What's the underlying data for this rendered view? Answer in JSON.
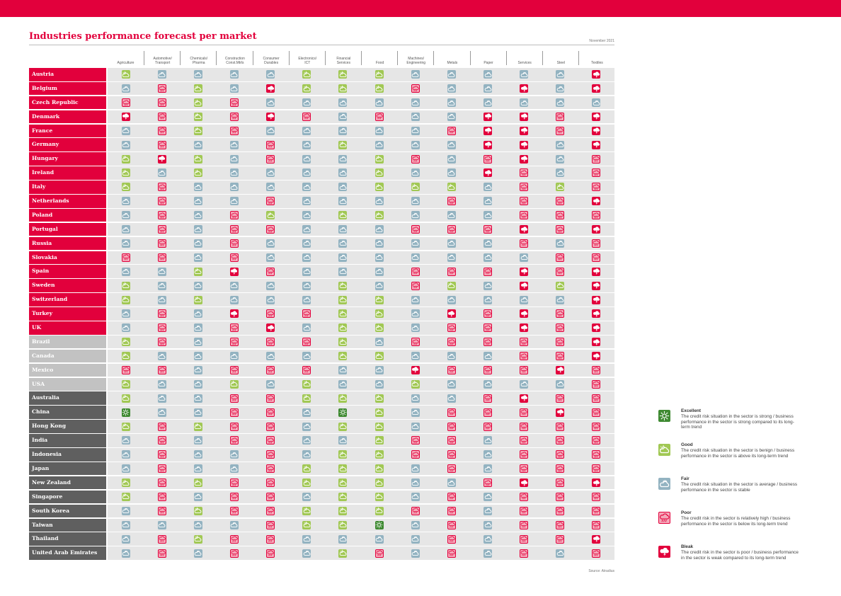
{
  "page": {
    "title": "Industries performance forecast per market",
    "date": "November 2021",
    "source": "Source: Atradius"
  },
  "colors": {
    "brand_red": "#e2003c",
    "excellent": "#3f8a32",
    "good": "#a1c854",
    "fair": "#93b3c1",
    "poor": "#f4a8b9",
    "bleak": "#e2003c",
    "europe_row": "#e2003c",
    "americas_row": "#c2c2c2",
    "asia_pacific_row": "#5f5f5f"
  },
  "sectors": [
    "Agriculture",
    "Automotive/\nTransport",
    "Chemicals/\nPharma",
    "Construction\nConst.Mtrls",
    "Consumer\nDurables",
    "Electronics/\nICT",
    "Financial\nServices",
    "Food",
    "Machines/\nEngineering",
    "Metals",
    "Paper",
    "Services",
    "Steel",
    "Textiles"
  ],
  "rating_key": {
    "E": "excellent",
    "G": "good",
    "F": "fair",
    "P": "poor",
    "B": "bleak"
  },
  "icons": {
    "excellent": "sun-icon",
    "good": "sun-behind-cloud-icon",
    "fair": "cloud-icon",
    "poor": "rain-cloud-icon",
    "bleak": "storm-cloud-icon"
  },
  "markets": [
    {
      "name": "Austria",
      "region": "europe",
      "ratings": "GFFFFGGGFFFFFB"
    },
    {
      "name": "Belgium",
      "region": "europe",
      "ratings": "FPGFBGGGPFFBFB"
    },
    {
      "name": "Czech Republic",
      "region": "europe",
      "ratings": "PPGPFFFFFFFFFF"
    },
    {
      "name": "Denmark",
      "region": "europe",
      "ratings": "BPGPBPFPFFBBPB"
    },
    {
      "name": "France",
      "region": "europe",
      "ratings": "FPGPFFFFFPBBPB"
    },
    {
      "name": "Germany",
      "region": "europe",
      "ratings": "FPFFPFGFFFBBFB"
    },
    {
      "name": "Hungary",
      "region": "europe",
      "ratings": "GBGFPFFGPFPBFP"
    },
    {
      "name": "Ireland",
      "region": "europe",
      "ratings": "GFGFFFFGFFBPFP"
    },
    {
      "name": "Italy",
      "region": "europe",
      "ratings": "GPFFFFFGGGFPGP"
    },
    {
      "name": "Netherlands",
      "region": "europe",
      "ratings": "FPFFPFFFFPFPPB"
    },
    {
      "name": "Poland",
      "region": "europe",
      "ratings": "FPFPGFGGFFFPPP"
    },
    {
      "name": "Portugal",
      "region": "europe",
      "ratings": "FPFPPFFFPPPBPB"
    },
    {
      "name": "Russia",
      "region": "europe",
      "ratings": "FPFPFFFFFFFPFP"
    },
    {
      "name": "Slovakia",
      "region": "europe",
      "ratings": "PPFPFFFFFFFFPP"
    },
    {
      "name": "Spain",
      "region": "europe",
      "ratings": "FFGBPFFFPPPBPB"
    },
    {
      "name": "Sweden",
      "region": "europe",
      "ratings": "GFFFFFGFPGFBGB"
    },
    {
      "name": "Switzerland",
      "region": "europe",
      "ratings": "GFGFFFGGFFFFFB"
    },
    {
      "name": "Turkey",
      "region": "europe",
      "ratings": "FPFBPPGGFBPBPB"
    },
    {
      "name": "UK",
      "region": "europe",
      "ratings": "FPFPBFGGFPPBPB"
    },
    {
      "name": "Brazil",
      "region": "americas",
      "ratings": "GPFPPPGFPPPPPB"
    },
    {
      "name": "Canada",
      "region": "americas",
      "ratings": "GFFFFFGGFFFPPB"
    },
    {
      "name": "Mexico",
      "region": "americas",
      "ratings": "PPFPPPFFBPPPBP"
    },
    {
      "name": "USA",
      "region": "americas",
      "ratings": "GFFGFGFFGFFFFP"
    },
    {
      "name": "Australia",
      "region": "asia_pacific",
      "ratings": "GFFPPGGGFFPBPP"
    },
    {
      "name": "China",
      "region": "asia_pacific",
      "ratings": "EFFPPFEGFPPPBP"
    },
    {
      "name": "Hong Kong",
      "region": "asia_pacific",
      "ratings": "GPGPPFGGFPPPPP"
    },
    {
      "name": "India",
      "region": "asia_pacific",
      "ratings": "FPFPPFFGPPFPPP"
    },
    {
      "name": "Indonesia",
      "region": "asia_pacific",
      "ratings": "FPFFPFGGPPFPPP"
    },
    {
      "name": "Japan",
      "region": "asia_pacific",
      "ratings": "FPFFPGGGFPFPPP"
    },
    {
      "name": "New Zealand",
      "region": "asia_pacific",
      "ratings": "GPGPPGGGFFPBPB"
    },
    {
      "name": "Singapore",
      "region": "asia_pacific",
      "ratings": "GPFPPFGGFPFPPP"
    },
    {
      "name": "South Korea",
      "region": "asia_pacific",
      "ratings": "FPGPPGGGPPFPPP"
    },
    {
      "name": "Taiwan",
      "region": "asia_pacific",
      "ratings": "FFFFPGGEFPFPPP"
    },
    {
      "name": "Thailand",
      "region": "asia_pacific",
      "ratings": "FPGPPFFFFPFPPB"
    },
    {
      "name": "United Arab Emirates",
      "region": "asia_pacific",
      "ratings": "FPFPPFGPFPFPFP"
    }
  ],
  "legend": [
    {
      "key": "excellent",
      "name": "Excellent",
      "description": "The credit risk situation in the sector is strong / business performance in the sector is strong compared to its long-term trend"
    },
    {
      "key": "good",
      "name": "Good",
      "description": "The credit risk situation in the sector is benign / business performance in the sector is above its long-term trend"
    },
    {
      "key": "fair",
      "name": "Fair",
      "description": "The credit risk situation in the sector is average / business performance in the sector is stable"
    },
    {
      "key": "poor",
      "name": "Poor",
      "description": "The credit risk in the sector is relatively high / business performance in the sector is below its long-term trend"
    },
    {
      "key": "bleak",
      "name": "Bleak",
      "description": "The credit risk in the sector is poor / business performance in the sector is weak compared to its long-term trend"
    }
  ]
}
